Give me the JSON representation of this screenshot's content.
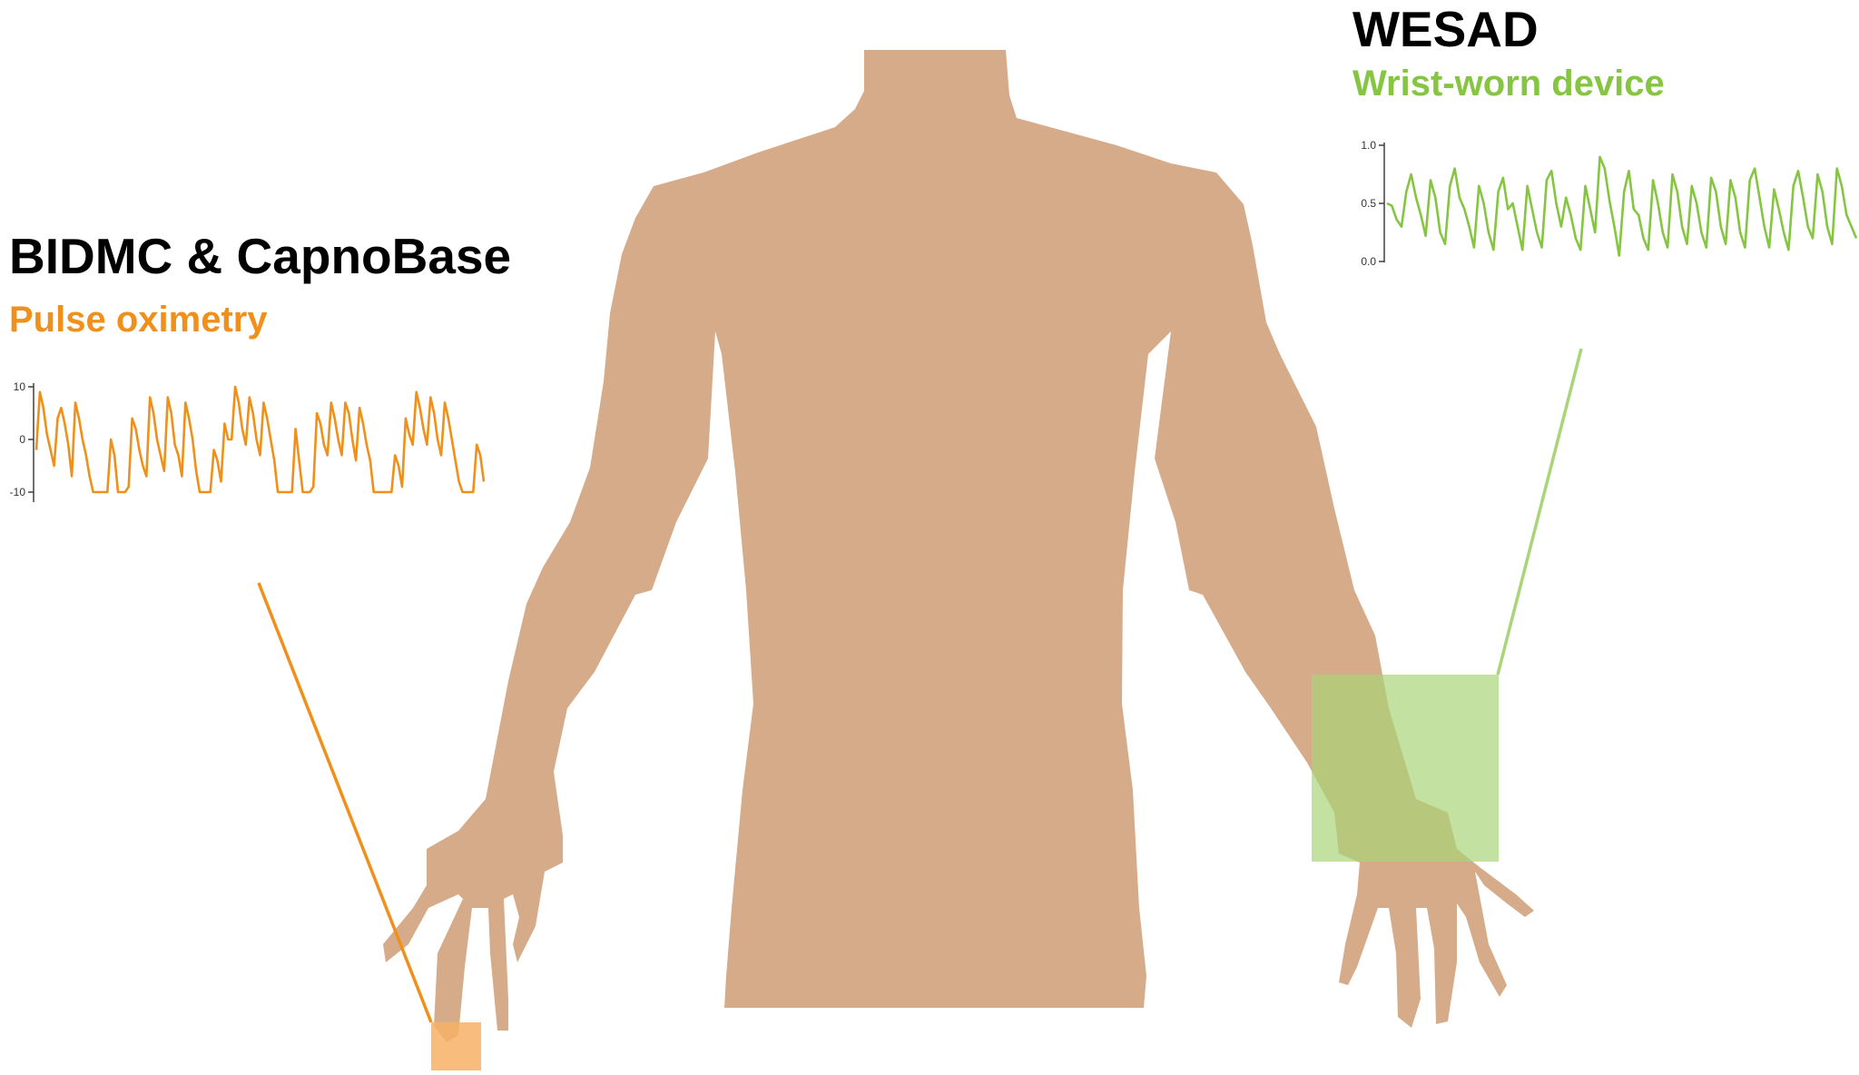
{
  "colors": {
    "background": "#ffffff",
    "body": "#d6ab89",
    "orange_accent": "#f0901a",
    "orange_sensor_fill": "#f7b266",
    "green_accent": "#86c542",
    "green_sensor_fill": "#a9d477",
    "title_text": "#000000"
  },
  "left_panel": {
    "dataset_title": "BIDMC & CapnoBase",
    "signal_label": "Pulse oximetry",
    "plot": {
      "y_ticks": [
        "10",
        "0",
        "-10"
      ],
      "color": "#f0901a",
      "values": [
        -2,
        9,
        6,
        1,
        -2,
        -5,
        4,
        6,
        3,
        -1,
        -7,
        7,
        4,
        0,
        -3,
        -7,
        -10,
        -10,
        -10,
        -10,
        -10,
        0,
        -3,
        -10,
        -10,
        -10,
        -9,
        4,
        2,
        -2,
        -5,
        -7,
        8,
        5,
        0,
        -3,
        -6,
        8,
        5,
        -1,
        -3,
        -7,
        7,
        4,
        0,
        -6,
        -10,
        -10,
        -10,
        -10,
        -2,
        -4,
        -8,
        3,
        0,
        0,
        10,
        7,
        2,
        -1,
        8,
        5,
        0,
        -3,
        7,
        4,
        0,
        -4,
        -10,
        -10,
        -10,
        -10,
        -10,
        2,
        -4,
        -10,
        -10,
        -10,
        -9,
        5,
        3,
        -1,
        -3,
        7,
        4,
        0,
        -3,
        7,
        5,
        0,
        -4,
        6,
        3,
        -1,
        -4,
        -10,
        -10,
        -10,
        -10,
        -10,
        -10,
        -3,
        -5,
        -9,
        4,
        1,
        -1,
        9,
        6,
        2,
        -1,
        8,
        5,
        0,
        -3,
        7,
        4,
        0,
        -4,
        -8,
        -10,
        -10,
        -10,
        -10,
        -1,
        -3,
        -8
      ]
    }
  },
  "right_panel": {
    "dataset_title": "WESAD",
    "signal_label": "Wrist-worn device",
    "plot": {
      "y_ticks": [
        "1.0",
        "0.5",
        "0.0"
      ],
      "color": "#86c542",
      "values": [
        0.5,
        0.48,
        0.36,
        0.3,
        0.6,
        0.75,
        0.55,
        0.4,
        0.22,
        0.7,
        0.55,
        0.25,
        0.15,
        0.65,
        0.8,
        0.55,
        0.45,
        0.3,
        0.12,
        0.65,
        0.5,
        0.25,
        0.1,
        0.6,
        0.72,
        0.45,
        0.5,
        0.3,
        0.1,
        0.65,
        0.45,
        0.25,
        0.12,
        0.7,
        0.78,
        0.5,
        0.3,
        0.55,
        0.4,
        0.2,
        0.1,
        0.65,
        0.45,
        0.25,
        0.9,
        0.8,
        0.52,
        0.3,
        0.05,
        0.6,
        0.78,
        0.45,
        0.4,
        0.2,
        0.1,
        0.7,
        0.5,
        0.25,
        0.12,
        0.75,
        0.6,
        0.3,
        0.15,
        0.65,
        0.5,
        0.25,
        0.12,
        0.72,
        0.6,
        0.3,
        0.15,
        0.7,
        0.55,
        0.25,
        0.12,
        0.7,
        0.8,
        0.55,
        0.3,
        0.12,
        0.62,
        0.45,
        0.25,
        0.1,
        0.65,
        0.78,
        0.55,
        0.3,
        0.2,
        0.75,
        0.6,
        0.3,
        0.15,
        0.8,
        0.65,
        0.4,
        0.3,
        0.2
      ]
    }
  }
}
